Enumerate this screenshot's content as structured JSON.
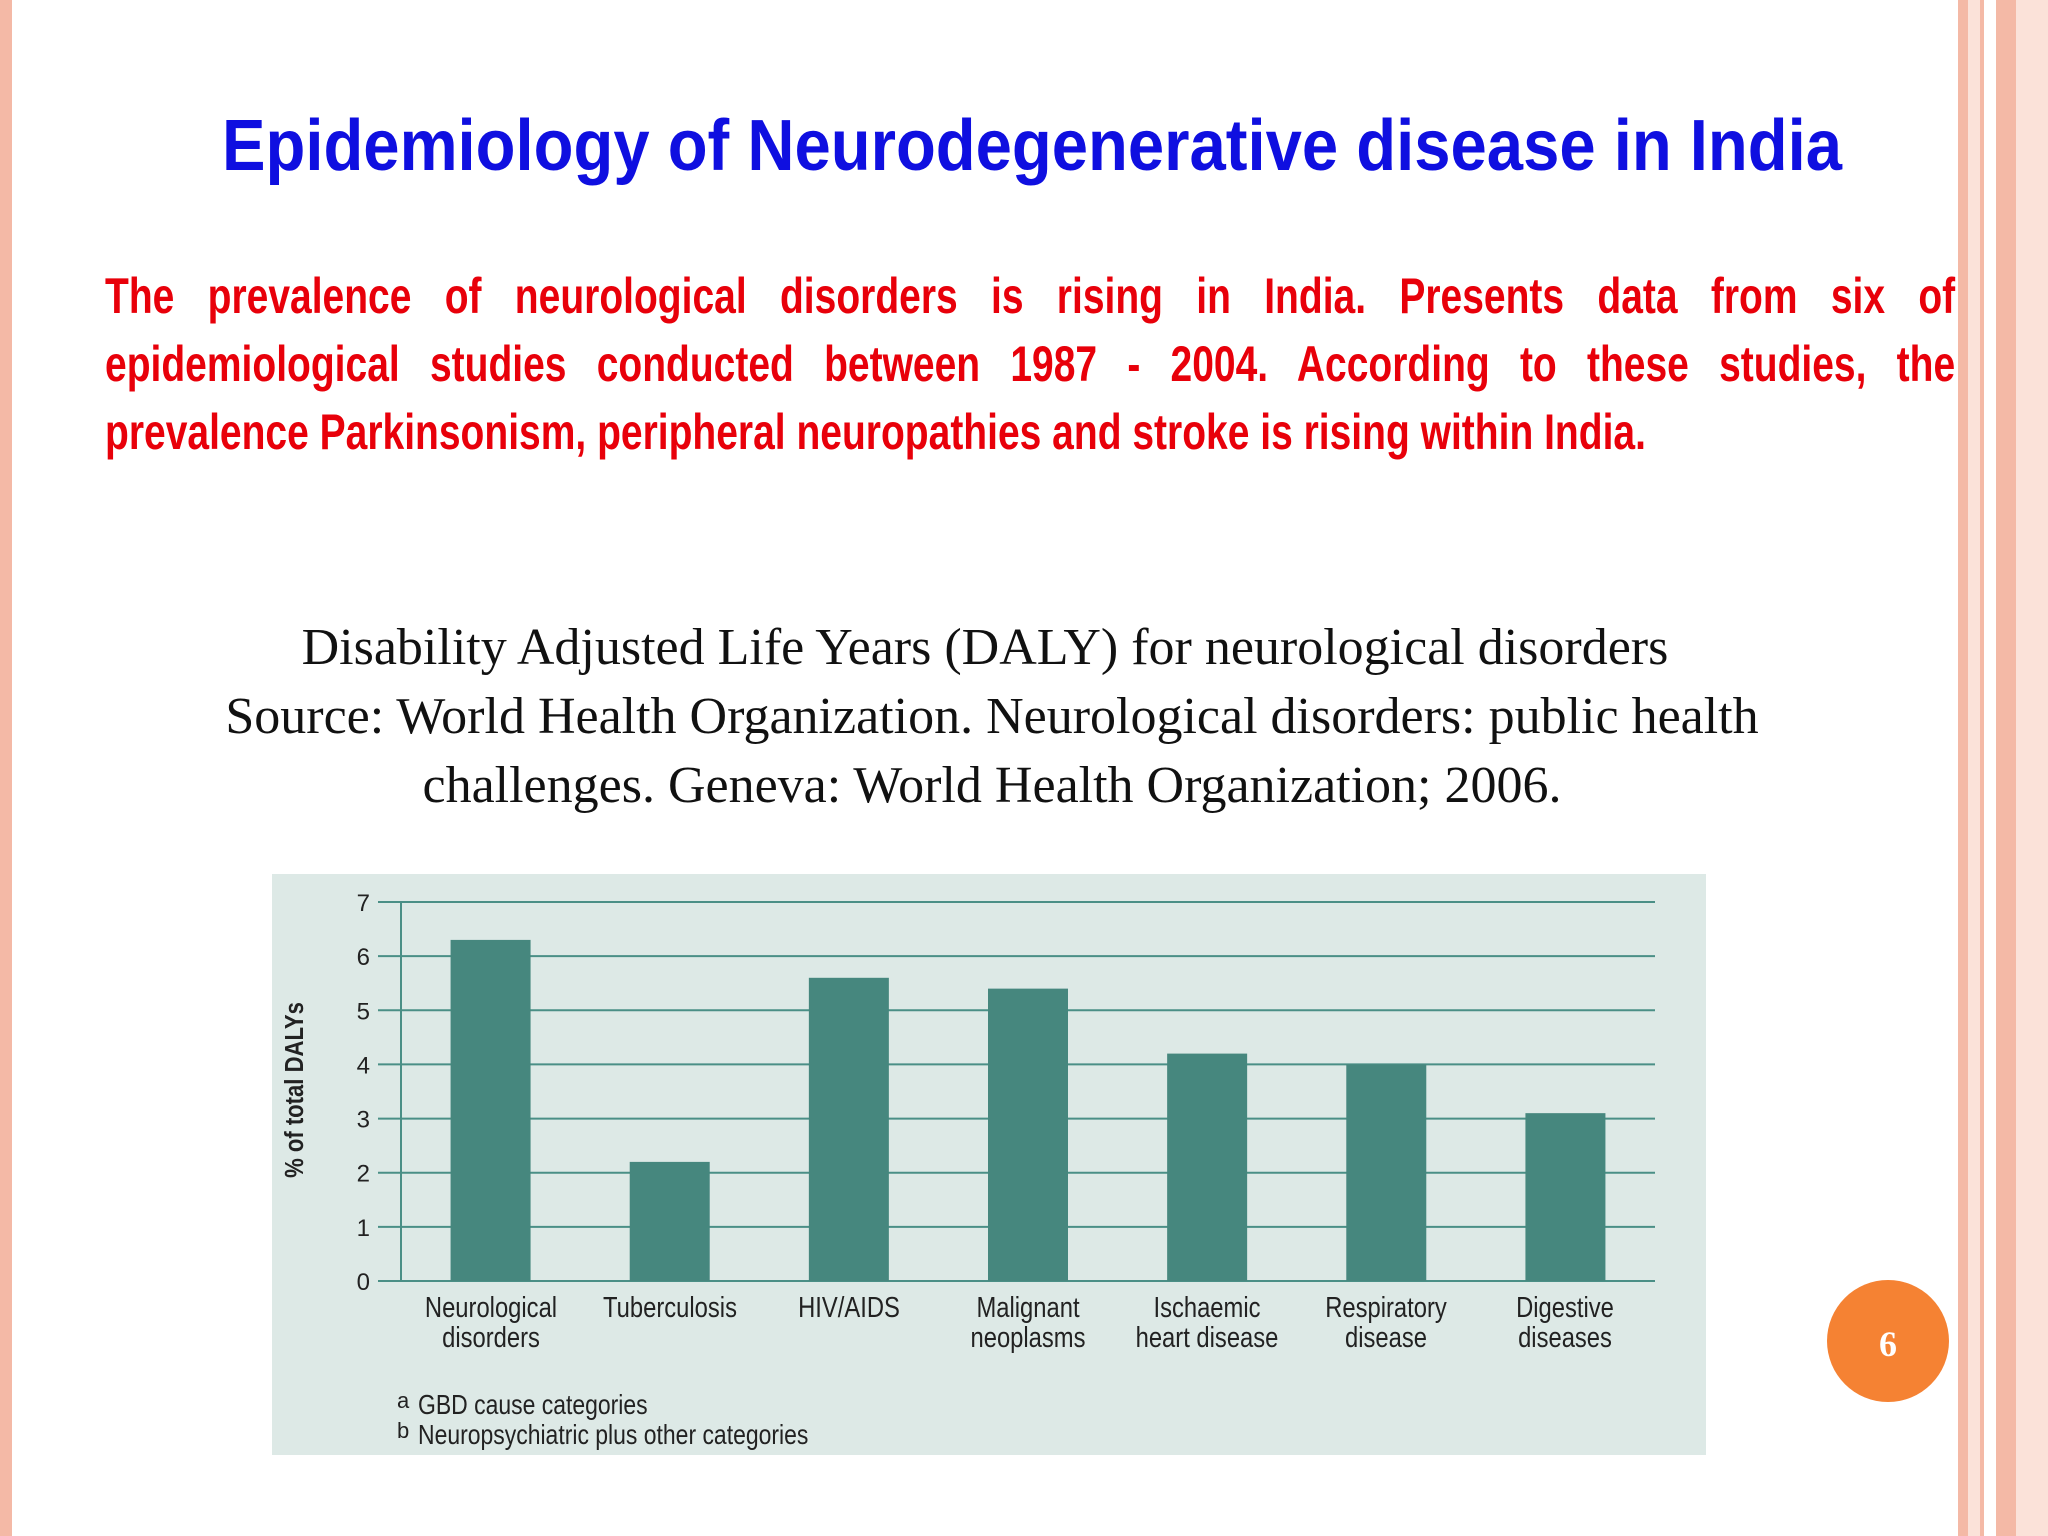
{
  "title": "Epidemiology of Neurodegenerative disease in India",
  "paragraph": "The prevalence of neurological disorders is rising in India. Presents data from six of epidemiological studies conducted between 1987 - 2004. According to these studies, the prevalence Parkinsonism, peripheral neuropathies and stroke is rising within India.",
  "caption": [
    "Disability Adjusted Life Years (DALY) for neurological disorders",
    "Source: World Health Organization. Neurological disorders: public health",
    "challenges. Geneva: World Health Organization; 2006."
  ],
  "page_number": "6",
  "chart_data": {
    "type": "bar",
    "ylabel": "% of total DALYs",
    "categories": [
      "Neurological disorders",
      "Tuberculosis",
      "HIV/AIDS",
      "Malignant neoplasms",
      "Ischaemic heart disease",
      "Respiratory disease",
      "Digestive diseases"
    ],
    "values": [
      6.3,
      2.2,
      5.6,
      5.4,
      4.2,
      4.0,
      3.1
    ],
    "color": "#46877e",
    "ylim": [
      0,
      7
    ],
    "yticks": [
      0,
      1,
      2,
      3,
      4,
      5,
      6,
      7
    ],
    "grid": true,
    "notes": [
      {
        "marker": "a",
        "text": "GBD cause categories"
      },
      {
        "marker": "b",
        "text": "Neuropsychiatric plus other categories"
      }
    ]
  }
}
